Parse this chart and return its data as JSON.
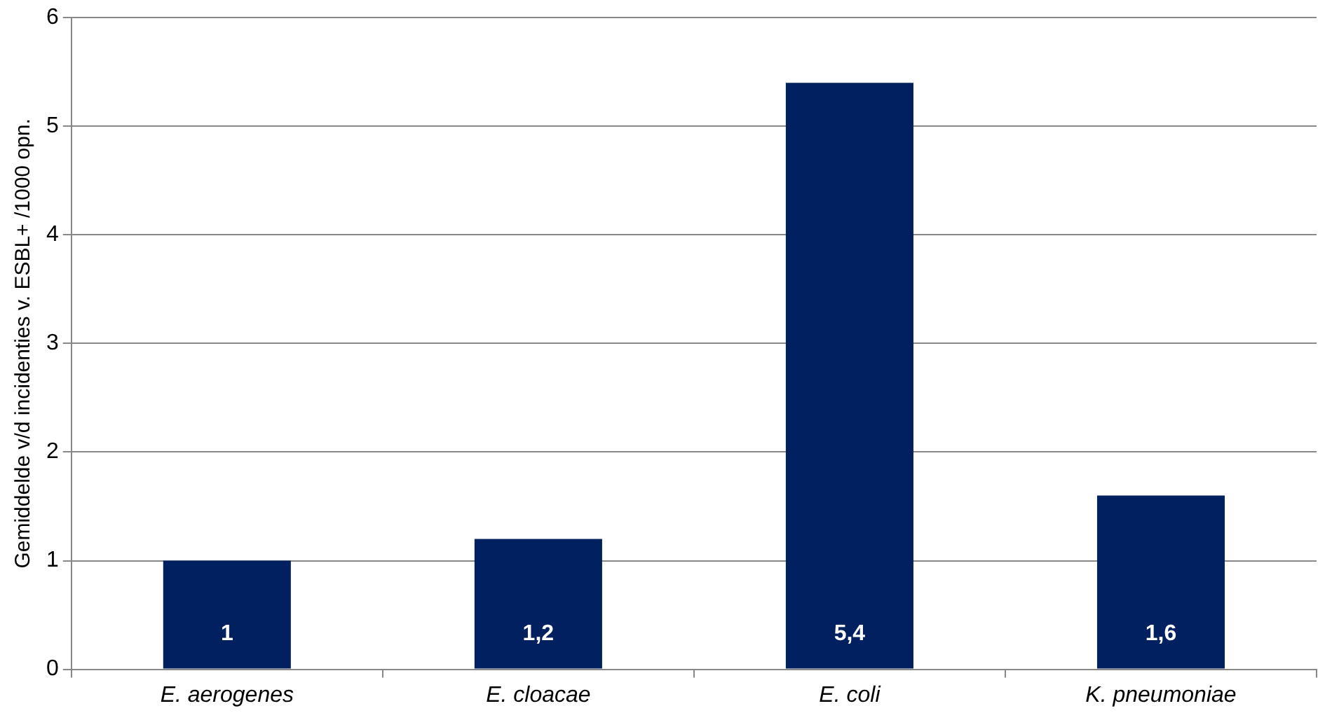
{
  "chart_data": {
    "type": "bar",
    "ylabel": "Gemiddelde v/d incidenties v. ESBL+ /1000 opn.",
    "categories": [
      "E. aerogenes",
      "E. cloacae",
      "E. coli",
      "K. pneumoniae"
    ],
    "values": [
      1,
      1.2,
      5.4,
      1.6
    ],
    "value_labels": [
      "1",
      "1,2",
      "5,4",
      "1,6"
    ],
    "color": "#002060",
    "ylim": [
      0,
      6
    ],
    "yticks": [
      0,
      1,
      2,
      3,
      4,
      5,
      6
    ],
    "grid": "y",
    "legend": false
  }
}
